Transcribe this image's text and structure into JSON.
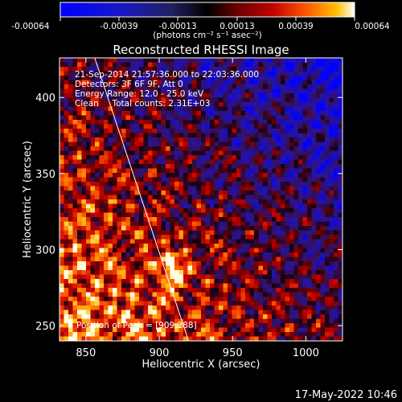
{
  "chart_data": {
    "type": "heatmap",
    "title": "Reconstructed RHESSI Image",
    "xlabel": "Heliocentric X (arcsec)",
    "ylabel": "Heliocentric Y (arcsec)",
    "xlim": [
      832,
      1025
    ],
    "ylim": [
      240,
      426
    ],
    "x_ticks": [
      850,
      900,
      950,
      1000
    ],
    "y_ticks": [
      250,
      300,
      350,
      400
    ],
    "colorbar": {
      "range": [
        -0.00064,
        0.00064
      ],
      "ticks": [
        "-0.00064",
        "-0.00039",
        "-0.00013",
        "0.00013",
        "0.00039",
        "0.00064"
      ],
      "label": "(photons cm⁻² s⁻¹ asec⁻²)",
      "colors": [
        "#0000ff",
        "#1010d0",
        "#202060",
        "#000000",
        "#6a0000",
        "#c00000",
        "#ff5a00",
        "#ffc000",
        "#ffffff"
      ]
    },
    "info_lines": [
      "21-Sep-2014 21:57:36.000 to 22:03:36.000",
      "Detectors: 3F 6F 9F, Att 0",
      "Energy Range: 12.0 - 25.0 keV",
      "Clean     Total counts: 2.31E+03"
    ],
    "peak_label": "Position of Peak = [909,288]",
    "peak": {
      "x": 909,
      "y": 288
    },
    "limb_line": [
      {
        "x": 856,
        "y": 426
      },
      {
        "x": 920,
        "y": 240
      }
    ],
    "grid": false
  },
  "footer": {
    "date": "17-May-2022 10:46"
  }
}
